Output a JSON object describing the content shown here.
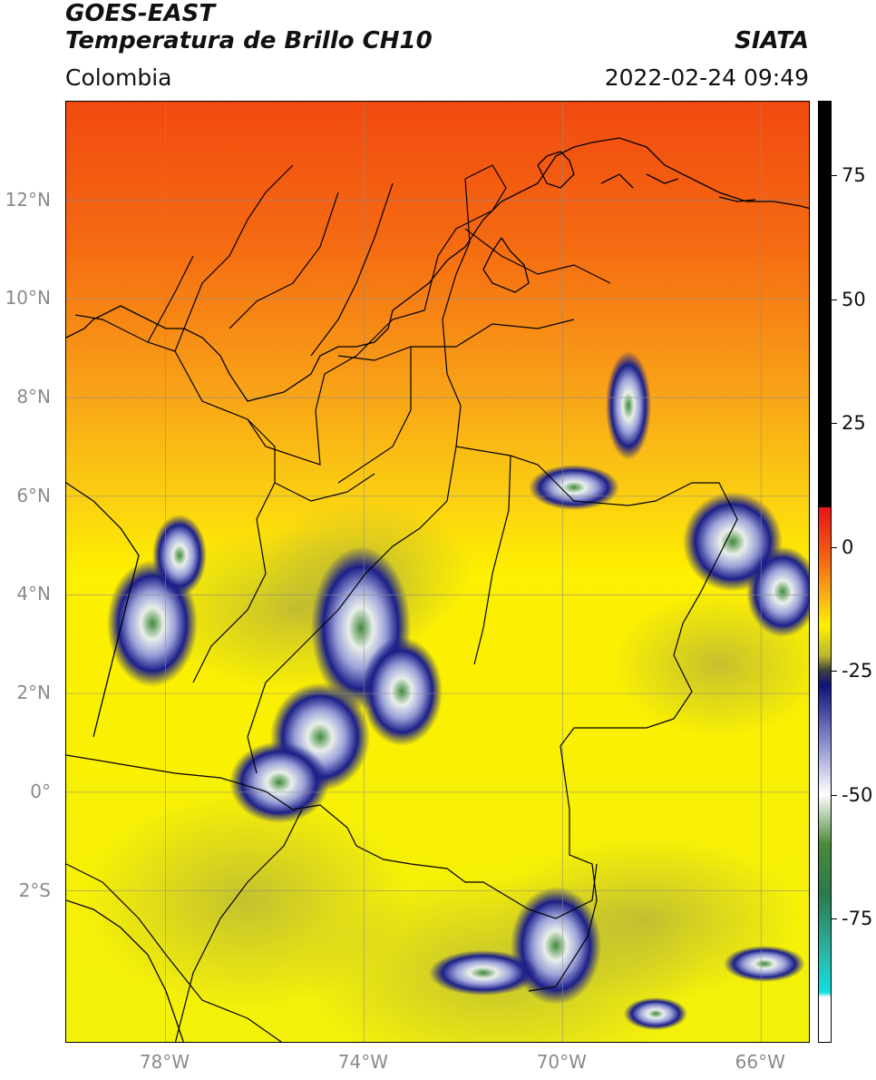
{
  "header": {
    "title_line1": "GOES-EAST",
    "title_line2": "Temperatura de Brillo CH10",
    "region": "Colombia",
    "agency": "SIATA",
    "datetime": "2022-02-24 09:49"
  },
  "map": {
    "lat_ticks": [
      {
        "value": 12,
        "label": "12°N"
      },
      {
        "value": 10,
        "label": "10°N"
      },
      {
        "value": 8,
        "label": "8°N"
      },
      {
        "value": 6,
        "label": "6°N"
      },
      {
        "value": 4,
        "label": "4°N"
      },
      {
        "value": 2,
        "label": "2°N"
      },
      {
        "value": 0,
        "label": "0°"
      },
      {
        "value": -2,
        "label": "2°S"
      }
    ],
    "lon_ticks": [
      {
        "value": -78,
        "label": "78°W"
      },
      {
        "value": -74,
        "label": "74°W"
      },
      {
        "value": -70,
        "label": "70°W"
      },
      {
        "value": -66,
        "label": "66°W"
      }
    ],
    "extent": {
      "lon_min": -80,
      "lon_max": -65,
      "lat_min": -5.1,
      "lat_max": 14
    }
  },
  "colorbar": {
    "min": -100,
    "max": 90,
    "ticks": [
      {
        "value": 75,
        "label": "75"
      },
      {
        "value": 50,
        "label": "50"
      },
      {
        "value": 25,
        "label": "25"
      },
      {
        "value": 0,
        "label": "0"
      },
      {
        "value": -25,
        "label": "-25"
      },
      {
        "value": -50,
        "label": "-50"
      },
      {
        "value": -75,
        "label": "-75"
      }
    ]
  }
}
